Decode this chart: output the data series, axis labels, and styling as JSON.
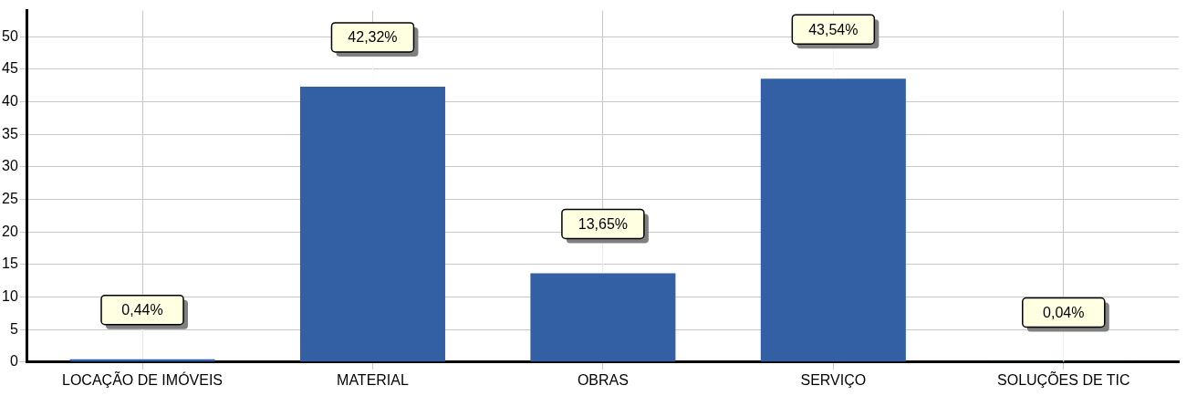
{
  "chart_data": {
    "type": "bar",
    "categories": [
      "LOCAÇÃO DE IMÓVEIS",
      "MATERIAL",
      "OBRAS",
      "SERVIÇO",
      "SOLUÇÕES DE TIC"
    ],
    "values": [
      0.44,
      42.32,
      13.65,
      43.54,
      0.04
    ],
    "value_labels": [
      "0,44%",
      "42,32%",
      "13,65%",
      "43,54%",
      "0,04%"
    ],
    "color": "#335fa5",
    "ylim": [
      0,
      54
    ],
    "yticks": [
      0,
      5,
      10,
      15,
      20,
      25,
      30,
      35,
      40,
      45,
      50
    ],
    "grid": true,
    "legend": false
  }
}
